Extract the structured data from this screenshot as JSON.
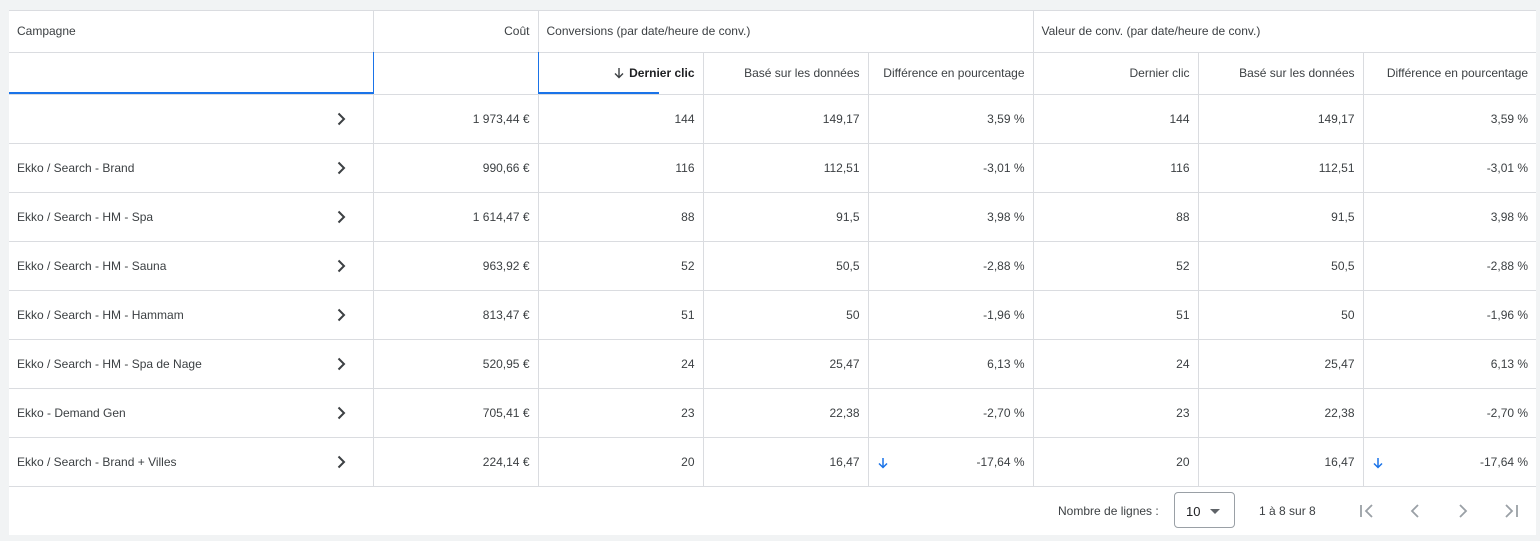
{
  "header": {
    "campagne": "Campagne",
    "cout": "Coût",
    "conversions_group": "Conversions (par date/heure de conv.)",
    "valeur_group": "Valeur de conv. (par date/heure de conv.)",
    "sub": {
      "dernier_clic": "Dernier clic",
      "base_donnees": "Basé sur les données",
      "difference": "Différence en pourcentage"
    }
  },
  "rows": [
    {
      "campaign": "",
      "cost": "1 973,44 €",
      "conv_last": "144",
      "conv_data": "149,17",
      "conv_diff": "3,59 %",
      "val_last": "144",
      "val_data": "149,17",
      "val_diff": "3,59 %"
    },
    {
      "campaign": "Ekko / Search - Brand",
      "cost": "990,66 €",
      "conv_last": "116",
      "conv_data": "112,51",
      "conv_diff": "-3,01 %",
      "val_last": "116",
      "val_data": "112,51",
      "val_diff": "-3,01 %"
    },
    {
      "campaign": "Ekko / Search - HM - Spa",
      "cost": "1 614,47 €",
      "conv_last": "88",
      "conv_data": "91,5",
      "conv_diff": "3,98 %",
      "val_last": "88",
      "val_data": "91,5",
      "val_diff": "3,98 %"
    },
    {
      "campaign": "Ekko / Search - HM - Sauna",
      "cost": "963,92 €",
      "conv_last": "52",
      "conv_data": "50,5",
      "conv_diff": "-2,88 %",
      "val_last": "52",
      "val_data": "50,5",
      "val_diff": "-2,88 %"
    },
    {
      "campaign": "Ekko / Search - HM - Hammam",
      "cost": "813,47 €",
      "conv_last": "51",
      "conv_data": "50",
      "conv_diff": "-1,96 %",
      "val_last": "51",
      "val_data": "50",
      "val_diff": "-1,96 %"
    },
    {
      "campaign": "Ekko / Search - HM - Spa de Nage",
      "cost": "520,95 €",
      "conv_last": "24",
      "conv_data": "25,47",
      "conv_diff": "6,13 %",
      "val_last": "24",
      "val_data": "25,47",
      "val_diff": "6,13 %"
    },
    {
      "campaign": "Ekko - Demand Gen",
      "cost": "705,41 €",
      "conv_last": "23",
      "conv_data": "22,38",
      "conv_diff": "-2,70 %",
      "val_last": "23",
      "val_data": "22,38",
      "val_diff": "-2,70 %"
    },
    {
      "campaign": "Ekko / Search - Brand + Villes",
      "cost": "224,14 €",
      "conv_last": "20",
      "conv_data": "16,47",
      "conv_diff": "-17,64 %",
      "val_last": "20",
      "val_data": "16,47",
      "val_diff": "-17,64 %"
    }
  ],
  "footer": {
    "rows_label": "Nombre de lignes :",
    "rows_value": "10",
    "range": "1 à 8 sur 8"
  },
  "colors": {
    "accent": "#1a73e8",
    "border": "#dadce0",
    "icon": "#5f6368"
  },
  "icons": {
    "row_expand": "chevron-right-icon",
    "sort": "arrow-down-icon",
    "first": "first-page-icon",
    "prev": "chevron-left-icon",
    "next": "chevron-right-icon",
    "last": "last-page-icon"
  }
}
